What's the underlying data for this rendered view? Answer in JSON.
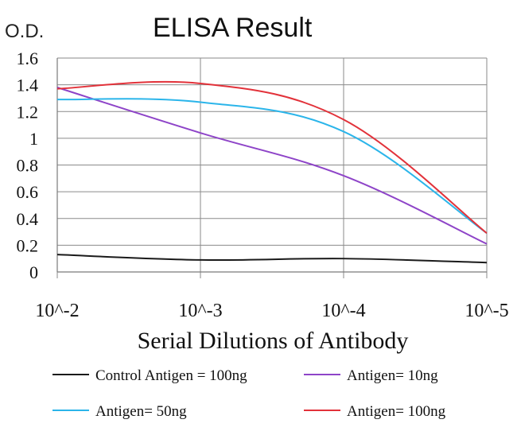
{
  "chart_data": {
    "type": "line",
    "title": "ELISA Result",
    "ylabel": "O.D.",
    "xlabel": "Serial Dilutions of Antibody",
    "x": [
      "10^-2",
      "10^-3",
      "10^-4",
      "10^-5"
    ],
    "yticks": [
      "0",
      "0.2",
      "0.4",
      "0.6",
      "0.8",
      "1",
      "1.2",
      "1.4",
      "1.6"
    ],
    "ylim": [
      0,
      1.6
    ],
    "grid": true,
    "legend_position": "bottom",
    "series": [
      {
        "name": "Control Antigen = 100ng",
        "color": "#1a1a1a",
        "values": [
          0.13,
          0.09,
          0.1,
          0.07
        ]
      },
      {
        "name": "Antigen= 10ng",
        "color": "#8e44c8",
        "values": [
          1.38,
          1.04,
          0.72,
          0.21
        ]
      },
      {
        "name": "Antigen= 50ng",
        "color": "#2bb5ea",
        "values": [
          1.29,
          1.27,
          1.05,
          0.29
        ]
      },
      {
        "name": "Antigen= 100ng",
        "color": "#e2323a",
        "values": [
          1.37,
          1.41,
          1.14,
          0.29
        ]
      }
    ]
  }
}
